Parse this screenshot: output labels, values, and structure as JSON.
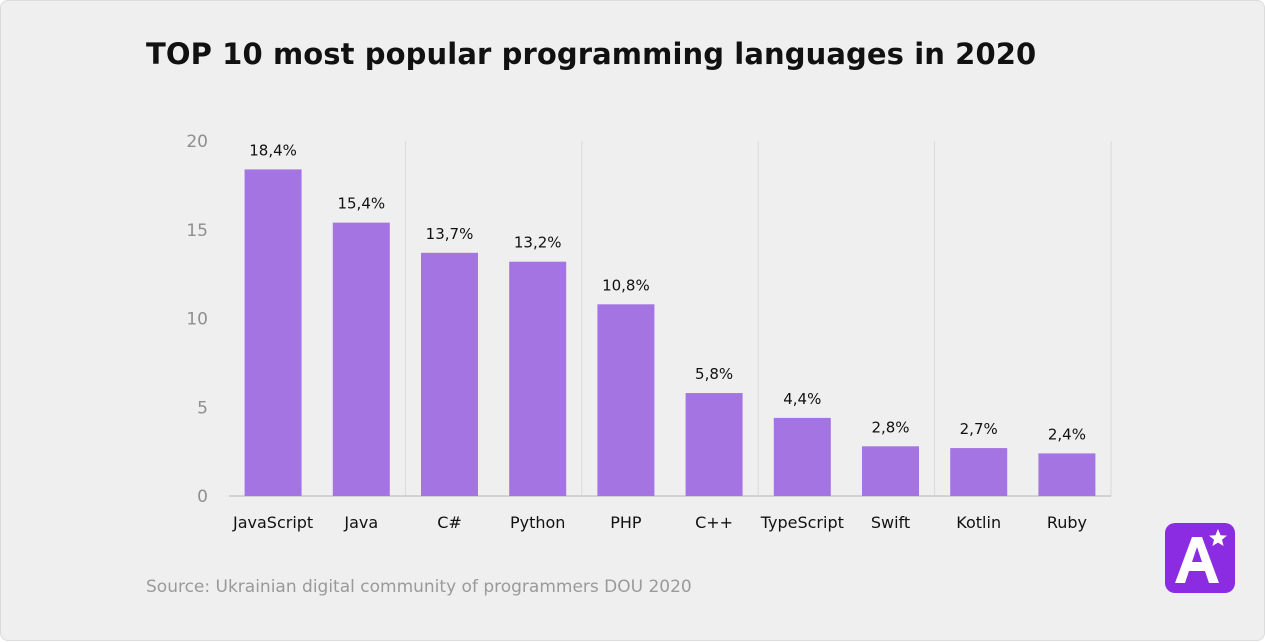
{
  "title": "TOP 10 most popular programming languages in 2020",
  "source": "Source: Ukrainian digital community of programmers DOU 2020",
  "colors": {
    "bar": "#a475e2",
    "grid": "#dadada",
    "axis": "#c9c9c9",
    "logo": "#8b2be2"
  },
  "logo": {
    "name": "A-star-logo"
  },
  "chart_data": {
    "type": "bar",
    "categories": [
      "JavaScript",
      "Java",
      "C#",
      "Python",
      "PHP",
      "C++",
      "TypeScript",
      "Swift",
      "Kotlin",
      "Ruby"
    ],
    "values": [
      18.4,
      15.4,
      13.7,
      13.2,
      10.8,
      5.8,
      4.4,
      2.8,
      2.7,
      2.4
    ],
    "data_labels": [
      "18,4%",
      "15,4%",
      "13,7%",
      "13,2%",
      "10,8%",
      "5,8%",
      "4,4%",
      "2,8%",
      "2,7%",
      "2,4%"
    ],
    "ylim": [
      0,
      20
    ],
    "yticks": [
      0,
      5,
      10,
      15,
      20
    ],
    "ytick_labels": [
      "0",
      "5",
      "10",
      "15",
      "20"
    ],
    "xlabel": "",
    "ylabel": "",
    "grid": true,
    "legend": "none"
  }
}
